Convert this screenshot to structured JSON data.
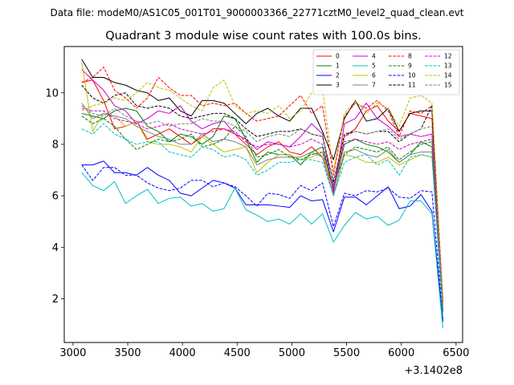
{
  "chart_data": {
    "type": "line",
    "suptitle": "Data file: modeM0/AS1C05_001T01_9000003366_22771cztM0_level2_quad_clean.evt",
    "title": "Quadrant 3 module wise count rates with 100.0s bins.",
    "xlabel": "",
    "ylabel": "",
    "x_offset_label": "+3.1402e8",
    "xlim": [
      2920,
      6560
    ],
    "ylim": [
      0.3,
      11.8
    ],
    "xticks": [
      3000,
      3500,
      4000,
      4500,
      5000,
      5500,
      6000,
      6500
    ],
    "xtick_labels": [
      "3000",
      "3500",
      "4000",
      "4500",
      "5000",
      "5500",
      "6000",
      "6500"
    ],
    "yticks": [
      2,
      4,
      6,
      8,
      10
    ],
    "ytick_labels": [
      "2",
      "4",
      "6",
      "8",
      "10"
    ],
    "legend": {
      "placement": "top-right",
      "columns": 4
    },
    "grid": false,
    "x": [
      3080,
      3180,
      3280,
      3380,
      3480,
      3580,
      3680,
      3780,
      3880,
      3980,
      4080,
      4180,
      4280,
      4380,
      4480,
      4580,
      4680,
      4780,
      4880,
      4980,
      5080,
      5180,
      5280,
      5380,
      5480,
      5580,
      5680,
      5780,
      5880,
      5980,
      6080,
      6180,
      6280,
      6380
    ],
    "series": [
      {
        "name": "0",
        "color": "#ff0000",
        "dash": false,
        "values": [
          10.4,
          10.5,
          9.7,
          8.6,
          8.7,
          8.9,
          8.2,
          8.4,
          8.6,
          8.3,
          8.0,
          8.3,
          8.6,
          8.6,
          8.4,
          8.0,
          7.6,
          7.9,
          8.1,
          7.7,
          7.6,
          7.9,
          7.5,
          6.3,
          8.3,
          8.6,
          9.3,
          9.5,
          8.9,
          8.5,
          9.2,
          9.1,
          9.0,
          1.8
        ]
      },
      {
        "name": "1",
        "color": "#008000",
        "dash": false,
        "values": [
          9.2,
          9.1,
          9.0,
          9.3,
          9.4,
          9.3,
          8.7,
          8.5,
          8.1,
          8.4,
          8.3,
          8.0,
          8.3,
          9.1,
          9.0,
          8.2,
          7.3,
          7.7,
          7.6,
          7.6,
          7.2,
          7.7,
          7.9,
          6.2,
          8.0,
          8.2,
          8.0,
          7.9,
          7.7,
          7.3,
          7.6,
          8.1,
          7.9,
          1.5
        ]
      },
      {
        "name": "2",
        "color": "#0000ff",
        "dash": false,
        "values": [
          7.2,
          7.2,
          7.35,
          6.9,
          6.9,
          6.8,
          7.1,
          6.8,
          6.6,
          6.1,
          6.0,
          6.3,
          6.6,
          6.5,
          6.3,
          5.65,
          5.65,
          5.65,
          5.6,
          5.55,
          6.0,
          5.8,
          5.85,
          4.6,
          5.95,
          5.95,
          5.65,
          6.0,
          6.35,
          5.5,
          5.6,
          6.05,
          5.4,
          1.1
        ]
      },
      {
        "name": "3",
        "color": "#000000",
        "dash": false,
        "values": [
          11.3,
          10.6,
          10.6,
          10.4,
          10.3,
          10.1,
          10.0,
          9.7,
          9.8,
          9.3,
          9.1,
          9.7,
          9.7,
          9.6,
          9.2,
          8.8,
          9.2,
          9.4,
          9.1,
          8.9,
          9.4,
          9.4,
          8.5,
          7.4,
          9.0,
          9.7,
          8.9,
          9.0,
          9.4,
          8.5,
          9.2,
          9.3,
          9.3,
          1.7
        ]
      },
      {
        "name": "4",
        "color": "#cc00cc",
        "dash": false,
        "values": [
          10.9,
          10.5,
          10.1,
          9.5,
          9.3,
          8.8,
          9.0,
          9.3,
          9.2,
          9.5,
          8.9,
          8.6,
          8.8,
          8.9,
          8.4,
          8.2,
          7.8,
          8.1,
          8.0,
          7.9,
          8.3,
          8.8,
          8.4,
          6.1,
          8.8,
          9.0,
          9.6,
          9.0,
          8.7,
          8.3,
          8.4,
          8.3,
          8.4,
          1.6
        ]
      },
      {
        "name": "5",
        "color": "#00bfbf",
        "dash": false,
        "values": [
          6.9,
          6.4,
          6.2,
          6.55,
          5.7,
          6.0,
          6.25,
          5.7,
          5.9,
          5.95,
          5.6,
          5.7,
          5.4,
          5.5,
          6.3,
          5.45,
          5.25,
          5.0,
          5.1,
          4.9,
          5.3,
          4.9,
          5.3,
          4.2,
          4.85,
          5.35,
          5.1,
          5.2,
          4.85,
          5.05,
          5.8,
          5.8,
          5.3,
          0.85
        ]
      },
      {
        "name": "6",
        "color": "#bfbf00",
        "dash": false,
        "values": [
          11.2,
          8.5,
          9.2,
          9.1,
          8.7,
          8.9,
          8.1,
          8.0,
          8.0,
          7.9,
          7.7,
          8.3,
          8.0,
          7.7,
          7.8,
          7.9,
          6.9,
          7.3,
          7.6,
          7.6,
          7.4,
          7.5,
          7.7,
          6.0,
          7.6,
          7.5,
          7.3,
          7.3,
          7.5,
          7.2,
          7.4,
          7.6,
          7.5,
          1.6
        ]
      },
      {
        "name": "7",
        "color": "#808080",
        "dash": false,
        "values": [
          9.6,
          9.0,
          9.2,
          9.1,
          9.0,
          8.7,
          8.5,
          8.3,
          8.2,
          8.0,
          8.0,
          8.4,
          8.1,
          8.2,
          8.1,
          7.9,
          7.2,
          7.4,
          7.5,
          7.5,
          7.5,
          7.7,
          7.5,
          6.0,
          7.7,
          7.8,
          7.6,
          7.5,
          7.8,
          7.3,
          7.6,
          7.7,
          7.7,
          1.7
        ]
      },
      {
        "name": "8",
        "color": "#ff0000",
        "dash": true,
        "values": [
          10.4,
          10.6,
          11.0,
          10.1,
          9.8,
          9.4,
          9.8,
          10.6,
          10.2,
          9.9,
          9.9,
          9.5,
          9.6,
          9.5,
          9.6,
          9.2,
          8.9,
          9.0,
          9.1,
          9.5,
          9.9,
          9.2,
          9.5,
          6.8,
          9.1,
          9.6,
          9.4,
          9.7,
          9.3,
          8.3,
          9.3,
          9.2,
          9.5,
          1.9
        ]
      },
      {
        "name": "9",
        "color": "#008000",
        "dash": true,
        "values": [
          9.1,
          8.8,
          9.0,
          8.7,
          8.2,
          7.8,
          8.0,
          8.2,
          8.1,
          8.2,
          8.4,
          7.9,
          8.0,
          8.2,
          8.7,
          8.3,
          7.5,
          7.6,
          7.8,
          7.5,
          7.4,
          7.6,
          7.7,
          6.4,
          7.6,
          7.9,
          7.8,
          7.7,
          7.9,
          7.4,
          7.7,
          8.0,
          8.1,
          1.5
        ]
      },
      {
        "name": "10",
        "color": "#0000ff",
        "dash": true,
        "values": [
          7.2,
          6.6,
          7.1,
          7.1,
          6.8,
          6.8,
          6.5,
          6.3,
          6.2,
          6.3,
          6.6,
          6.6,
          6.35,
          6.5,
          6.35,
          6.0,
          5.6,
          6.1,
          6.05,
          5.9,
          6.4,
          6.2,
          6.5,
          4.8,
          6.1,
          6.0,
          6.2,
          6.15,
          6.3,
          5.95,
          5.9,
          6.2,
          6.15,
          1.2
        ]
      },
      {
        "name": "11",
        "color": "#000000",
        "dash": true,
        "values": [
          10.3,
          9.8,
          9.6,
          9.9,
          10.0,
          9.5,
          9.4,
          9.5,
          9.4,
          9.1,
          9.0,
          9.1,
          9.2,
          9.2,
          9.0,
          8.6,
          8.3,
          8.4,
          8.5,
          8.5,
          8.6,
          8.4,
          8.3,
          6.5,
          8.4,
          8.5,
          8.4,
          8.5,
          8.5,
          8.1,
          8.4,
          8.6,
          9.5,
          1.8
        ]
      },
      {
        "name": "12",
        "color": "#cc00cc",
        "dash": true,
        "values": [
          9.4,
          9.3,
          9.3,
          9.0,
          8.9,
          8.8,
          8.6,
          8.7,
          8.8,
          8.6,
          8.5,
          8.4,
          8.5,
          8.6,
          8.5,
          8.1,
          7.9,
          8.0,
          8.0,
          7.9,
          8.0,
          8.2,
          8.0,
          6.3,
          8.1,
          8.2,
          8.1,
          8.0,
          8.1,
          7.8,
          8.0,
          8.1,
          8.2,
          1.6
        ]
      },
      {
        "name": "13",
        "color": "#00bfbf",
        "dash": true,
        "values": [
          8.6,
          8.4,
          8.8,
          8.4,
          8.2,
          8.0,
          8.1,
          8.1,
          7.7,
          7.6,
          7.5,
          7.9,
          7.8,
          7.5,
          7.6,
          7.4,
          6.8,
          7.0,
          7.3,
          7.3,
          7.4,
          7.4,
          7.3,
          6.0,
          7.3,
          7.5,
          7.6,
          7.2,
          7.4,
          6.8,
          7.5,
          7.6,
          7.5,
          1.3
        ]
      },
      {
        "name": "14",
        "color": "#bfbf00",
        "dash": true,
        "values": [
          9.3,
          9.5,
          9.6,
          9.8,
          9.7,
          10.0,
          10.4,
          10.2,
          10.1,
          9.8,
          9.5,
          9.3,
          10.2,
          10.5,
          9.5,
          9.2,
          9.3,
          9.2,
          9.5,
          9.0,
          9.3,
          10.0,
          10.1,
          7.0,
          9.2,
          9.7,
          9.2,
          9.6,
          9.4,
          8.7,
          9.8,
          9.9,
          9.6,
          1.7
        ]
      },
      {
        "name": "15",
        "color": "#808080",
        "dash": true,
        "values": [
          9.5,
          9.2,
          9.1,
          9.4,
          9.1,
          8.9,
          8.8,
          8.9,
          8.7,
          8.8,
          8.8,
          9.0,
          8.9,
          8.9,
          8.7,
          8.5,
          8.1,
          8.3,
          8.4,
          8.3,
          8.6,
          8.4,
          8.3,
          6.6,
          8.3,
          8.5,
          8.4,
          8.5,
          8.6,
          8.2,
          8.4,
          8.6,
          8.7,
          1.7
        ]
      }
    ]
  }
}
